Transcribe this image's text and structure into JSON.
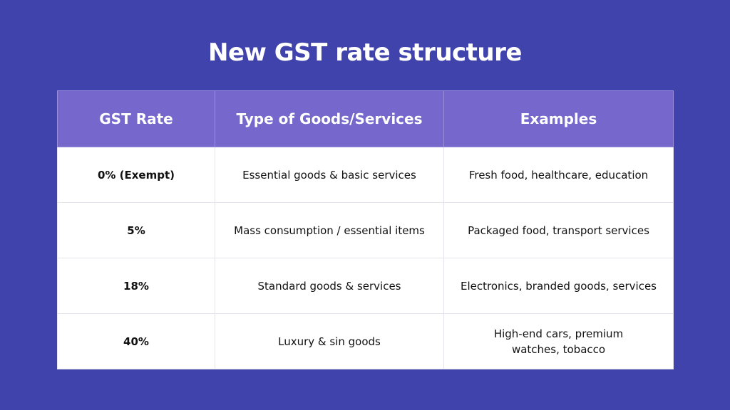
{
  "title": "New GST rate structure",
  "colors": {
    "background": "#4043ab",
    "header": "#7567cc",
    "cell": "#ffffff"
  },
  "table": {
    "headers": [
      "GST Rate",
      "Type of Goods/Services",
      "Examples"
    ],
    "rows": [
      {
        "rate": "0% (Exempt)",
        "type": "Essential goods & basic services",
        "examples": "Fresh food, healthcare, education"
      },
      {
        "rate": "5%",
        "type": "Mass consumption / essential items",
        "examples": "Packaged food, transport services"
      },
      {
        "rate": "18%",
        "type": "Standard goods & services",
        "examples": "Electronics, branded goods, services"
      },
      {
        "rate": "40%",
        "type": "Luxury & sin goods",
        "examples": "High-end cars, premium watches, tobacco"
      }
    ]
  }
}
